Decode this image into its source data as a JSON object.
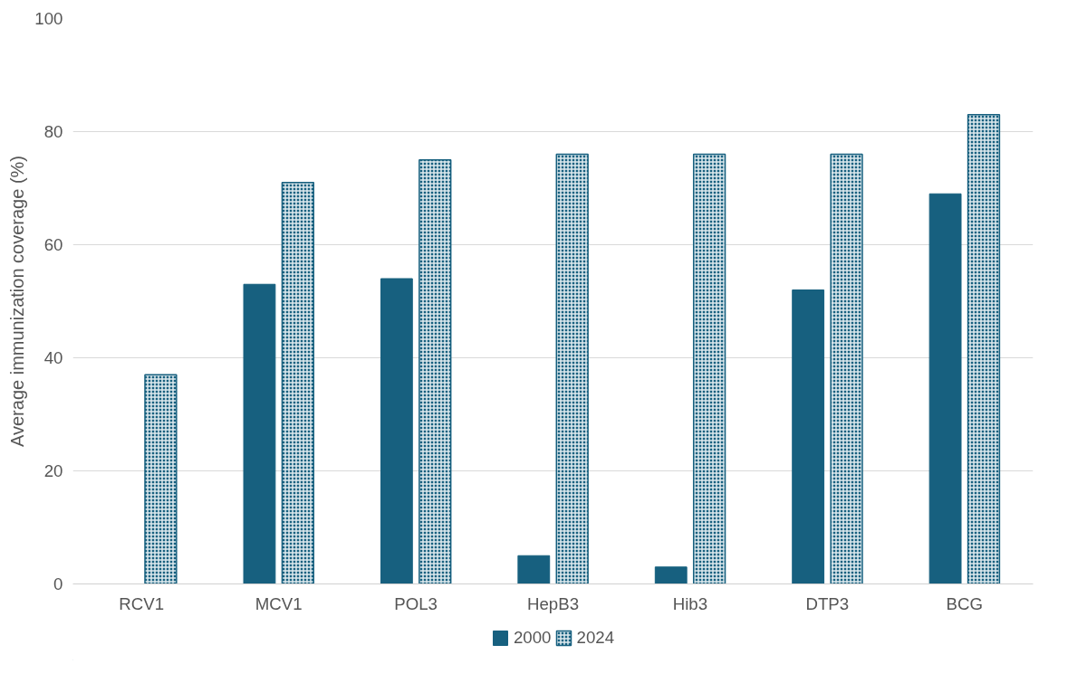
{
  "chart_data": {
    "type": "bar",
    "ylabel": "Average immunization coverage (%)",
    "categories": [
      "RCV1",
      "MCV1",
      "POL3",
      "HepB3",
      "Hib3",
      "DTP3",
      "BCG"
    ],
    "series": [
      {
        "name": "2000",
        "color": "#17607f",
        "values": [
          null,
          53,
          54,
          5,
          3,
          52,
          69
        ]
      },
      {
        "name": "2024",
        "color": "#17607f",
        "values": [
          37,
          71,
          75,
          76,
          76,
          76,
          83
        ]
      }
    ],
    "ylim": [
      0,
      100
    ],
    "yticks": [
      0,
      20,
      40,
      60,
      80,
      100
    ],
    "grid": "y",
    "legend": "bottom"
  }
}
